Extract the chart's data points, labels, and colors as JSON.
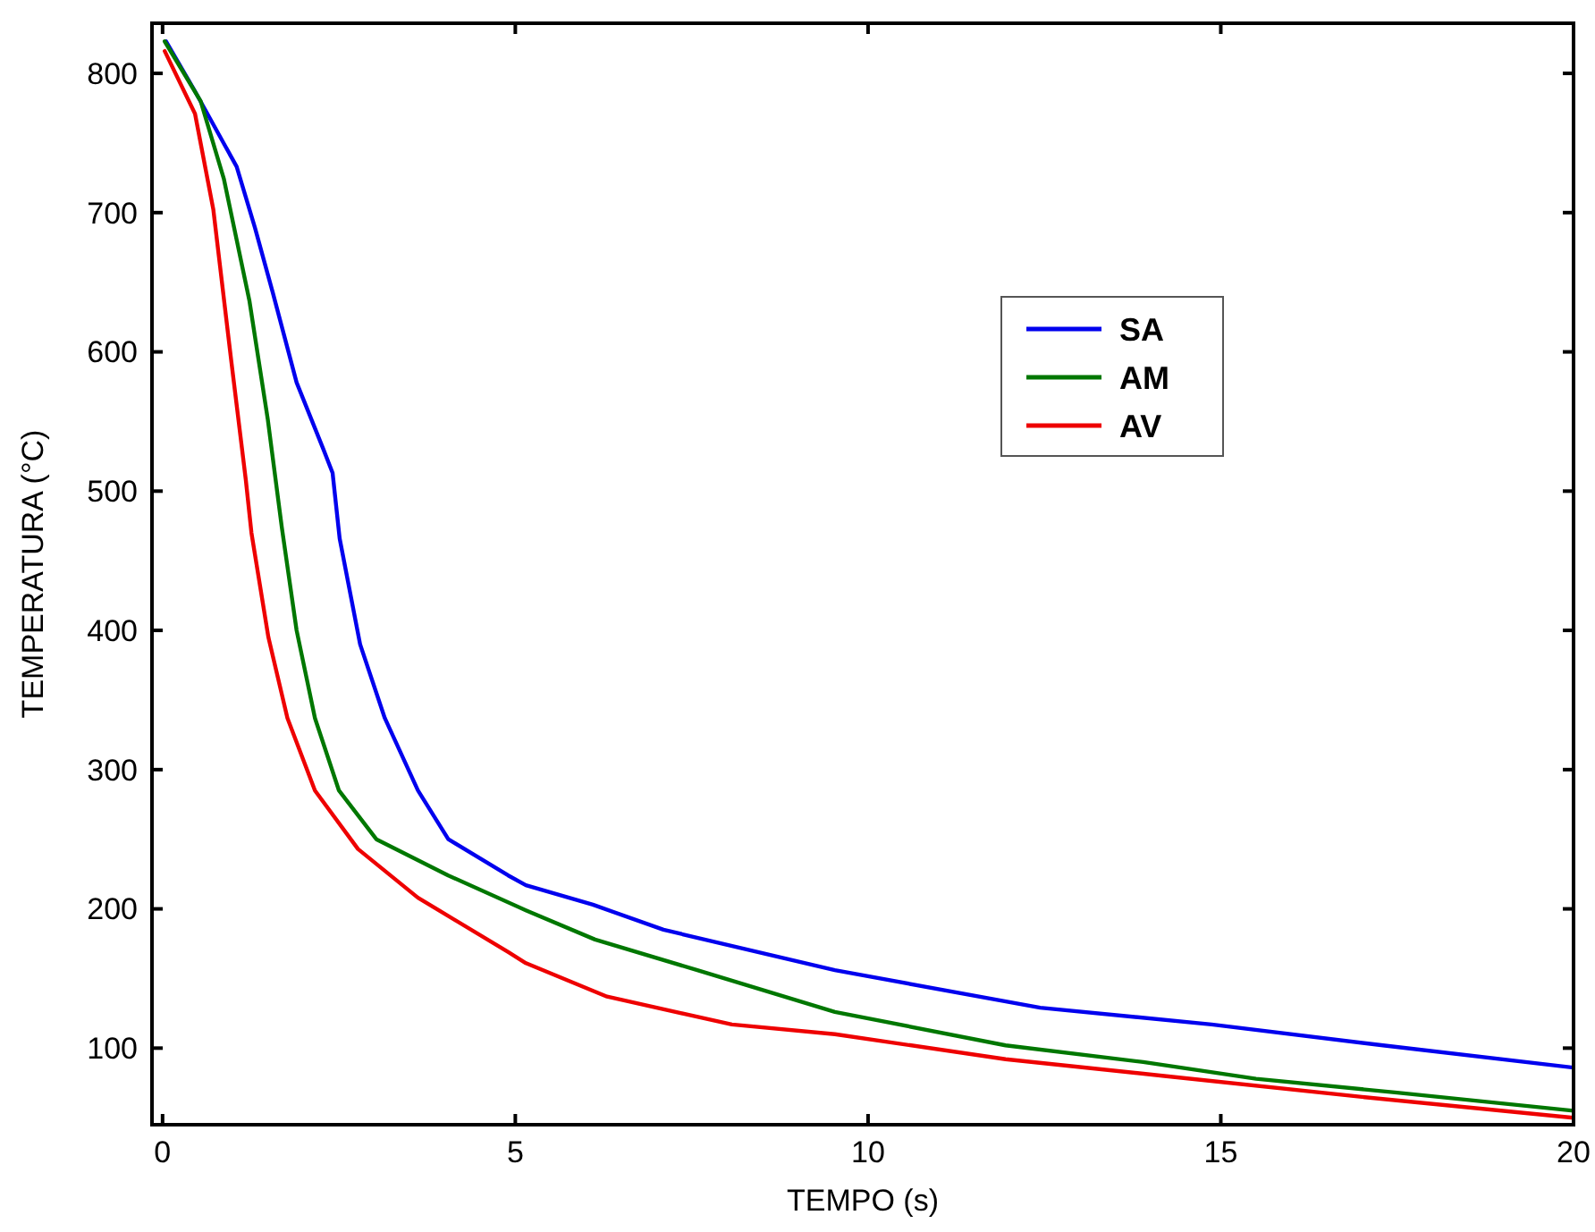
{
  "chart_data": {
    "type": "line",
    "xlabel": "TEMPO (s)",
    "ylabel": "TEMPERATURA (°C)",
    "xlim": [
      -0.15,
      20
    ],
    "xticks": [
      0,
      5,
      10,
      15,
      20
    ],
    "ylim": [
      45,
      836
    ],
    "yticks": [
      100,
      200,
      300,
      400,
      500,
      600,
      700,
      800
    ],
    "grid": false,
    "legend": "top right",
    "line_style": "solid",
    "marker": "none",
    "series": [
      {
        "name": "SA",
        "color": "#0000ee",
        "x": [
          0.05,
          0.45,
          1.05,
          1.31,
          1.56,
          1.9,
          2.28,
          2.41,
          2.51,
          2.8,
          3.15,
          3.62,
          4.05,
          4.9,
          5.15,
          6.1,
          7.1,
          9.53,
          12.44,
          14.87,
          17.3,
          20
        ],
        "values": [
          823,
          788,
          733,
          689,
          643,
          578,
          530,
          513,
          466,
          390,
          337,
          285,
          250,
          224,
          217,
          203,
          185,
          156,
          129,
          117,
          102,
          86
        ]
      },
      {
        "name": "AM",
        "color": "#007700",
        "x": [
          0.03,
          0.54,
          0.87,
          1.23,
          1.49,
          1.69,
          1.9,
          2.16,
          2.5,
          3.03,
          4.05,
          5.15,
          6.13,
          7.58,
          9.53,
          11.95,
          13.9,
          15.5,
          17.5,
          20
        ],
        "values": [
          823,
          780,
          724,
          637,
          552,
          474,
          400,
          337,
          285,
          250,
          224,
          199,
          178,
          156,
          126,
          102,
          90,
          78,
          68,
          55
        ]
      },
      {
        "name": "AV",
        "color": "#ee0000",
        "x": [
          0.03,
          0.46,
          0.72,
          0.97,
          1.18,
          1.26,
          1.5,
          1.77,
          2.16,
          2.77,
          3.62,
          4.9,
          5.15,
          6.3,
          8.07,
          9.53,
          11.95,
          14.2,
          17,
          20
        ],
        "values": [
          816,
          771,
          702,
          595,
          508,
          470,
          395,
          337,
          285,
          243,
          208,
          169,
          161,
          137,
          117,
          110,
          92,
          80,
          65,
          50
        ]
      }
    ]
  }
}
